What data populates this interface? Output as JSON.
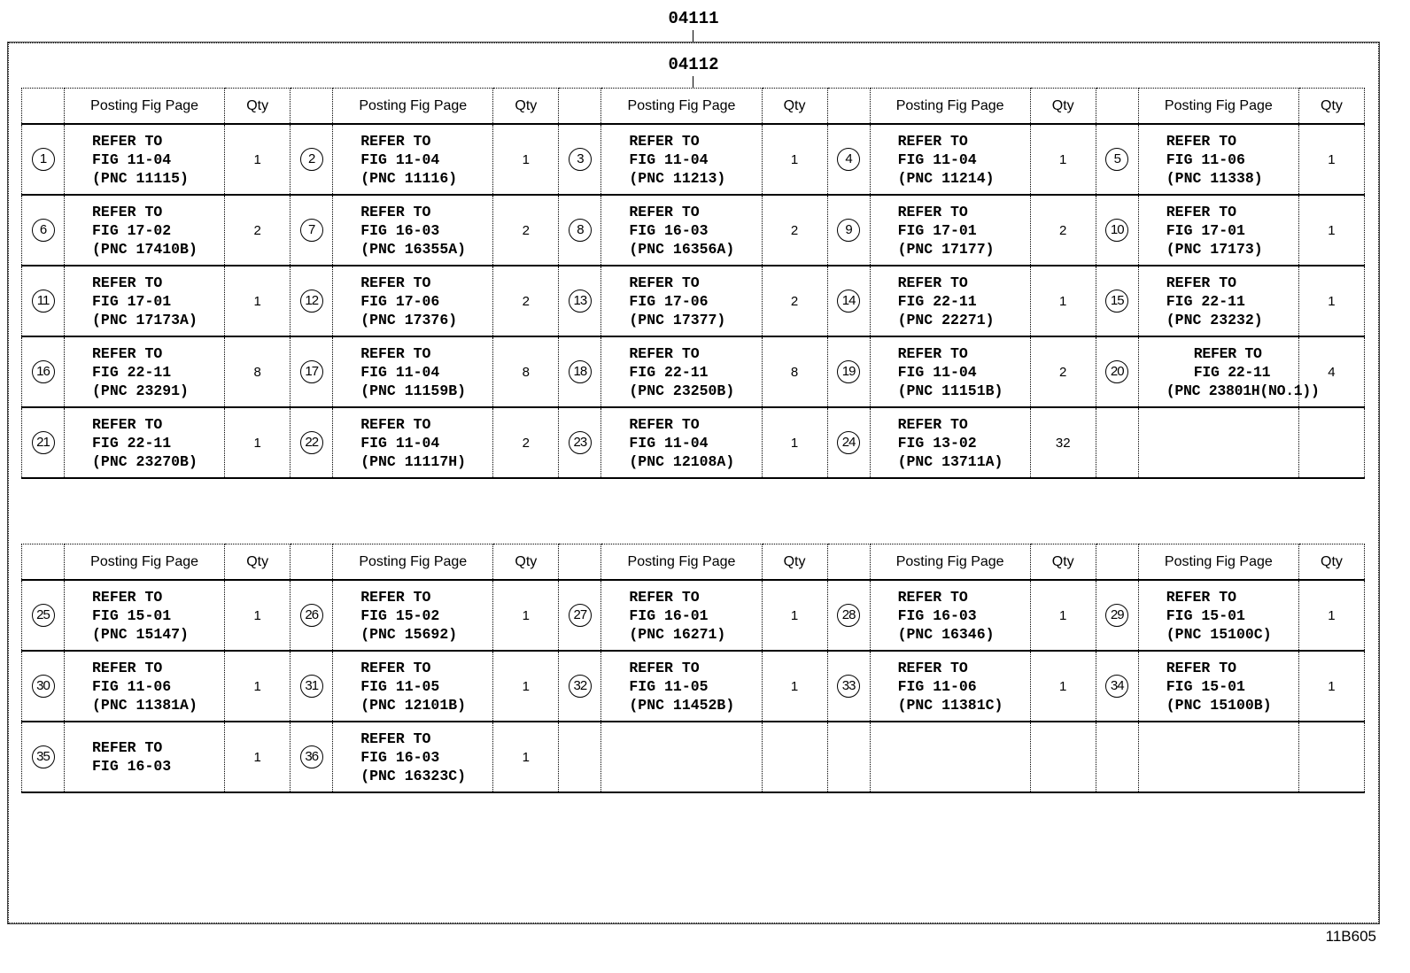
{
  "labels": {
    "outer": "04111",
    "inner": "04112",
    "figure_code": "11B605"
  },
  "header": {
    "posting": "Posting Fig Page",
    "qty": "Qty"
  },
  "tables": [
    {
      "items": [
        {
          "num": "1",
          "lines": [
            "REFER TO",
            "FIG 11-04",
            "(PNC 11115)"
          ],
          "qty": "1"
        },
        {
          "num": "2",
          "lines": [
            "REFER TO",
            "FIG 11-04",
            "(PNC 11116)"
          ],
          "qty": "1"
        },
        {
          "num": "3",
          "lines": [
            "REFER TO",
            "FIG 11-04",
            "(PNC 11213)"
          ],
          "qty": "1"
        },
        {
          "num": "4",
          "lines": [
            "REFER TO",
            "FIG 11-04",
            "(PNC 11214)"
          ],
          "qty": "1"
        },
        {
          "num": "5",
          "lines": [
            "REFER TO",
            "FIG 11-06",
            "(PNC 11338)"
          ],
          "qty": "1"
        },
        {
          "num": "6",
          "lines": [
            "REFER TO",
            "FIG 17-02",
            "(PNC 17410B)"
          ],
          "qty": "2"
        },
        {
          "num": "7",
          "lines": [
            "REFER TO",
            "FIG 16-03",
            "(PNC 16355A)"
          ],
          "qty": "2"
        },
        {
          "num": "8",
          "lines": [
            "REFER TO",
            "FIG 16-03",
            "(PNC 16356A)"
          ],
          "qty": "2"
        },
        {
          "num": "9",
          "lines": [
            "REFER TO",
            "FIG 17-01",
            "(PNC 17177)"
          ],
          "qty": "2"
        },
        {
          "num": "10",
          "lines": [
            "REFER TO",
            "FIG 17-01",
            "(PNC 17173)"
          ],
          "qty": "1"
        },
        {
          "num": "11",
          "lines": [
            "REFER TO",
            "FIG 17-01",
            "(PNC 17173A)"
          ],
          "qty": "1"
        },
        {
          "num": "12",
          "lines": [
            "REFER TO",
            "FIG 17-06",
            "(PNC 17376)"
          ],
          "qty": "2"
        },
        {
          "num": "13",
          "lines": [
            "REFER TO",
            "FIG 17-06",
            "(PNC 17377)"
          ],
          "qty": "2"
        },
        {
          "num": "14",
          "lines": [
            "REFER TO",
            "FIG 22-11",
            "(PNC 22271)"
          ],
          "qty": "1"
        },
        {
          "num": "15",
          "lines": [
            "REFER TO",
            "FIG 22-11",
            "(PNC 23232)"
          ],
          "qty": "1"
        },
        {
          "num": "16",
          "lines": [
            "REFER TO",
            "FIG 22-11",
            "(PNC 23291)"
          ],
          "qty": "8"
        },
        {
          "num": "17",
          "lines": [
            "REFER TO",
            "FIG 11-04",
            "(PNC 11159B)"
          ],
          "qty": "8"
        },
        {
          "num": "18",
          "lines": [
            "REFER TO",
            "FIG 22-11",
            "(PNC 23250B)"
          ],
          "qty": "8"
        },
        {
          "num": "19",
          "lines": [
            "REFER TO",
            "FIG 11-04",
            "(PNC 11151B)"
          ],
          "qty": "2"
        },
        {
          "num": "20",
          "lines": [
            "REFER TO",
            "FIG 22-11",
            "(PNC 23801H(NO.1))"
          ],
          "qty": "4"
        },
        {
          "num": "21",
          "lines": [
            "REFER TO",
            "FIG 22-11",
            "(PNC 23270B)"
          ],
          "qty": "1"
        },
        {
          "num": "22",
          "lines": [
            "REFER TO",
            "FIG 11-04",
            "(PNC 11117H)"
          ],
          "qty": "2"
        },
        {
          "num": "23",
          "lines": [
            "REFER TO",
            "FIG 11-04",
            "(PNC 12108A)"
          ],
          "qty": "1"
        },
        {
          "num": "24",
          "lines": [
            "REFER TO",
            "FIG 13-02",
            "(PNC 13711A)"
          ],
          "qty": "32"
        }
      ],
      "rows": 5
    },
    {
      "items": [
        {
          "num": "25",
          "lines": [
            "REFER TO",
            "FIG 15-01",
            "(PNC 15147)"
          ],
          "qty": "1"
        },
        {
          "num": "26",
          "lines": [
            "REFER TO",
            "FIG 15-02",
            "(PNC 15692)"
          ],
          "qty": "1"
        },
        {
          "num": "27",
          "lines": [
            "REFER TO",
            "FIG 16-01",
            "(PNC 16271)"
          ],
          "qty": "1"
        },
        {
          "num": "28",
          "lines": [
            "REFER TO",
            "FIG 16-03",
            "(PNC 16346)"
          ],
          "qty": "1"
        },
        {
          "num": "29",
          "lines": [
            "REFER TO",
            "FIG 15-01",
            "(PNC 15100C)"
          ],
          "qty": "1"
        },
        {
          "num": "30",
          "lines": [
            "REFER TO",
            "FIG 11-06",
            "(PNC 11381A)"
          ],
          "qty": "1"
        },
        {
          "num": "31",
          "lines": [
            "REFER TO",
            "FIG 11-05",
            "(PNC 12101B)"
          ],
          "qty": "1"
        },
        {
          "num": "32",
          "lines": [
            "REFER TO",
            "FIG 11-05",
            "(PNC 11452B)"
          ],
          "qty": "1"
        },
        {
          "num": "33",
          "lines": [
            "REFER TO",
            "FIG 11-06",
            "(PNC 11381C)"
          ],
          "qty": "1"
        },
        {
          "num": "34",
          "lines": [
            "REFER TO",
            "FIG 15-01",
            "(PNC 15100B)"
          ],
          "qty": "1"
        },
        {
          "num": "35",
          "lines": [
            "REFER TO",
            "FIG 16-03"
          ],
          "qty": "1"
        },
        {
          "num": "36",
          "lines": [
            "REFER TO",
            "FIG 16-03",
            "(PNC 16323C)"
          ],
          "qty": "1"
        }
      ],
      "rows": 3
    }
  ]
}
